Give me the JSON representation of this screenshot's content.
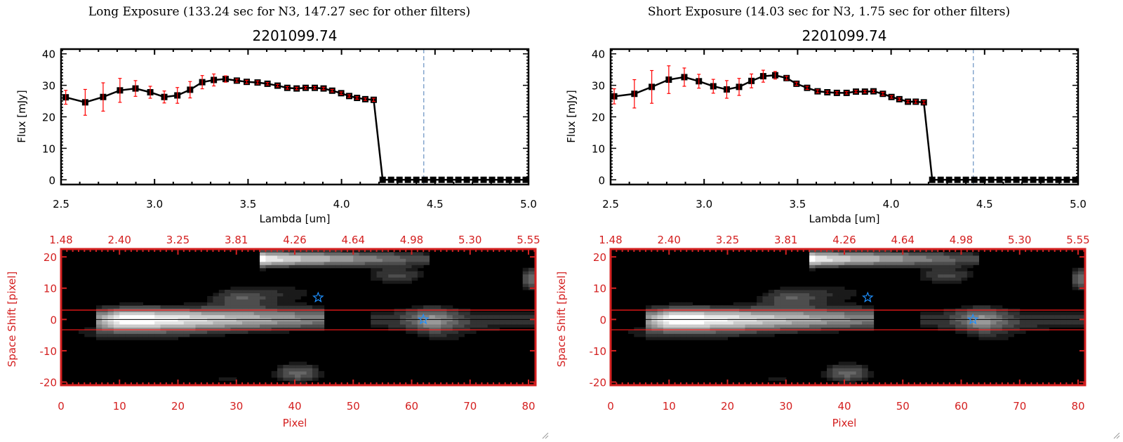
{
  "colors": {
    "axis": "#000000",
    "error": "#ff0000",
    "image_axis": "#d42020",
    "marker_star": "#1e90ff",
    "dashed_line": "#4a7ab5"
  },
  "panels": [
    {
      "title": "Long Exposure (133.24 sec for N3, 147.27 sec for other filters)",
      "object_id": "2201099.74"
    },
    {
      "title": "Short Exposure (14.03 sec for N3, 1.75 sec for other filters)",
      "object_id": "2201099.74"
    }
  ],
  "chart_data": [
    {
      "type": "line",
      "panel": 0,
      "xlabel": "Lambda [um]",
      "ylabel": "Flux [mJy]",
      "xlim": [
        2.5,
        5.0
      ],
      "ylim": [
        -1.5,
        41.5
      ],
      "xticks": [
        "2.5",
        "3.0",
        "3.5",
        "4.0",
        "4.5",
        "5.0"
      ],
      "yticks": [
        "0",
        "10",
        "20",
        "30",
        "40"
      ],
      "vline": 4.44,
      "x": [
        2.525,
        2.629,
        2.725,
        2.815,
        2.898,
        2.977,
        3.052,
        3.122,
        3.19,
        3.255,
        3.317,
        3.38,
        3.44,
        3.493,
        3.551,
        3.604,
        3.658,
        3.71,
        3.76,
        3.808,
        3.857,
        3.904,
        3.95,
        3.998,
        4.041,
        4.083,
        4.127,
        4.172,
        4.22,
        4.265,
        4.31,
        4.355,
        4.4,
        4.445,
        4.49,
        4.535,
        4.58,
        4.625,
        4.67,
        4.715,
        4.76,
        4.805,
        4.85,
        4.895,
        4.94,
        4.985
      ],
      "y": [
        26.2,
        24.6,
        26.3,
        28.4,
        29.0,
        27.8,
        26.3,
        26.8,
        28.6,
        31.0,
        31.7,
        32.0,
        31.5,
        31.1,
        30.9,
        30.5,
        29.9,
        29.2,
        29.0,
        29.2,
        29.2,
        29.0,
        28.3,
        27.5,
        26.6,
        26.0,
        25.6,
        25.4,
        0,
        0,
        0,
        0,
        0,
        0,
        0,
        0,
        0,
        0,
        0,
        0,
        0,
        0,
        0,
        0,
        0,
        0
      ],
      "yerr": [
        2.2,
        4.1,
        4.5,
        3.8,
        2.5,
        1.9,
        1.9,
        2.5,
        2.6,
        2.1,
        1.9,
        1.0,
        0.5,
        0.5,
        0.5,
        0.4,
        0.4,
        0.4,
        0.4,
        0.4,
        0.4,
        0.4,
        0.4,
        0.4,
        0.4,
        0.4,
        0.4,
        0.5,
        0,
        0,
        0,
        0,
        0,
        0,
        0,
        0,
        0,
        0,
        0,
        0,
        0,
        0,
        0,
        0,
        0,
        0
      ]
    },
    {
      "type": "line",
      "panel": 1,
      "xlabel": "Lambda [um]",
      "ylabel": "Flux [mJy]",
      "xlim": [
        2.5,
        5.0
      ],
      "ylim": [
        -1.5,
        41.5
      ],
      "xticks": [
        "2.5",
        "3.0",
        "3.5",
        "4.0",
        "4.5",
        "5.0"
      ],
      "yticks": [
        "0",
        "10",
        "20",
        "30",
        "40"
      ],
      "vline": 4.44,
      "x": [
        2.519,
        2.627,
        2.72,
        2.811,
        2.894,
        2.972,
        3.049,
        3.121,
        3.187,
        3.253,
        3.316,
        3.38,
        3.441,
        3.494,
        3.551,
        3.607,
        3.659,
        3.71,
        3.762,
        3.812,
        3.86,
        3.906,
        3.956,
        4.002,
        4.044,
        4.09,
        4.132,
        4.175,
        4.22,
        4.265,
        4.31,
        4.355,
        4.4,
        4.445,
        4.49,
        4.535,
        4.58,
        4.625,
        4.67,
        4.715,
        4.76,
        4.805,
        4.85,
        4.895,
        4.94,
        4.985
      ],
      "y": [
        26.5,
        27.3,
        29.5,
        31.8,
        32.6,
        31.3,
        29.7,
        28.7,
        29.5,
        31.4,
        32.9,
        33.2,
        32.3,
        30.5,
        29.2,
        28.1,
        27.8,
        27.6,
        27.6,
        28.0,
        28.0,
        28.1,
        27.3,
        26.3,
        25.6,
        24.8,
        24.8,
        24.6,
        0,
        0,
        0,
        0,
        0,
        0,
        0,
        0,
        0,
        0,
        0,
        0,
        0,
        0,
        0,
        0,
        0,
        0
      ],
      "yerr": [
        2.4,
        4.5,
        5.2,
        4.4,
        2.9,
        2.2,
        2.2,
        2.8,
        2.7,
        2.2,
        1.9,
        1.2,
        0.6,
        0.5,
        0.5,
        0.5,
        0.4,
        0.4,
        0.4,
        0.4,
        0.4,
        0.4,
        0.5,
        0.4,
        0.4,
        0.4,
        0.5,
        0.5,
        0,
        0,
        0,
        0,
        0,
        0,
        0,
        0,
        0,
        0,
        0,
        0,
        0,
        0,
        0,
        0,
        0,
        0
      ]
    },
    {
      "type": "heatmap",
      "panel": 0,
      "xlabel": "Pixel",
      "ylabel": "Space Shift [pixel]",
      "xlim": [
        0,
        81
      ],
      "ylim": [
        -21,
        22.5
      ],
      "xticks": [
        "0",
        "10",
        "20",
        "30",
        "40",
        "50",
        "60",
        "70",
        "80"
      ],
      "yticks": [
        "-20",
        "-10",
        "0",
        "10",
        "20"
      ],
      "top_ticks": [
        "1.48",
        "2.40",
        "3.25",
        "3.81",
        "4.26",
        "4.64",
        "4.98",
        "5.30",
        "5.55"
      ],
      "aperture_lines": [
        3,
        -3.3
      ],
      "center_line": 0,
      "stars": [
        [
          44,
          7
        ],
        [
          62,
          0
        ]
      ],
      "colormap": "grayscale"
    },
    {
      "type": "heatmap",
      "panel": 1,
      "xlabel": "Pixel",
      "ylabel": "Space Shift [pixel]",
      "xlim": [
        0,
        81
      ],
      "ylim": [
        -21,
        22.5
      ],
      "xticks": [
        "0",
        "10",
        "20",
        "30",
        "40",
        "50",
        "60",
        "70",
        "80"
      ],
      "yticks": [
        "-20",
        "-10",
        "0",
        "10",
        "20"
      ],
      "top_ticks": [
        "1.48",
        "2.40",
        "3.25",
        "3.81",
        "4.26",
        "4.64",
        "4.98",
        "5.30",
        "5.55"
      ],
      "aperture_lines": [
        3,
        -3.3
      ],
      "center_line": 0,
      "stars": [
        [
          44,
          7
        ],
        [
          62,
          0
        ]
      ],
      "colormap": "grayscale"
    }
  ]
}
